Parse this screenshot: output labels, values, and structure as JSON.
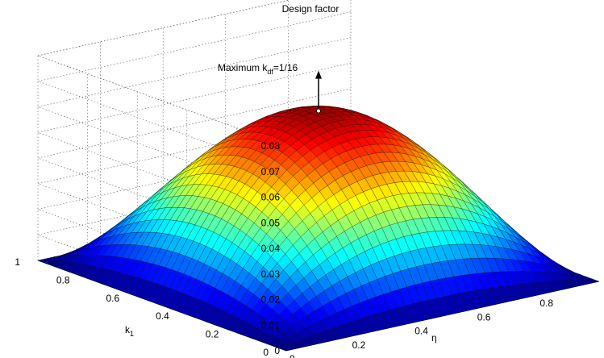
{
  "chart_data": {
    "type": "surface",
    "title": "Design factor",
    "xlabel": "η",
    "ylabel": "k",
    "ylabel_sub": "1",
    "zlabel": "",
    "x_ticks": [
      "0",
      "0.2",
      "0.4",
      "0.6",
      "0.8"
    ],
    "y_ticks": [
      "0",
      "0.2",
      "0.4",
      "0.6",
      "0.8",
      "1"
    ],
    "z_ticks": [
      "0",
      "0.01",
      "0.02",
      "0.03",
      "0.04",
      "0.05",
      "0.06",
      "0.07",
      "0.08"
    ],
    "xlim": [
      0,
      1
    ],
    "ylim": [
      0,
      1
    ],
    "zlim": [
      0,
      0.08
    ],
    "grid": true,
    "colormap": "jet",
    "function": "k_df = eta*(1-eta)*k1*(1-k1)",
    "grid_resolution": 40,
    "maximum": {
      "x": 0.5,
      "y": 0.5,
      "z": 0.0625
    },
    "annotation": {
      "text_prefix": "Maximum k",
      "text_sub": "df",
      "text_suffix": "=1/16"
    }
  }
}
